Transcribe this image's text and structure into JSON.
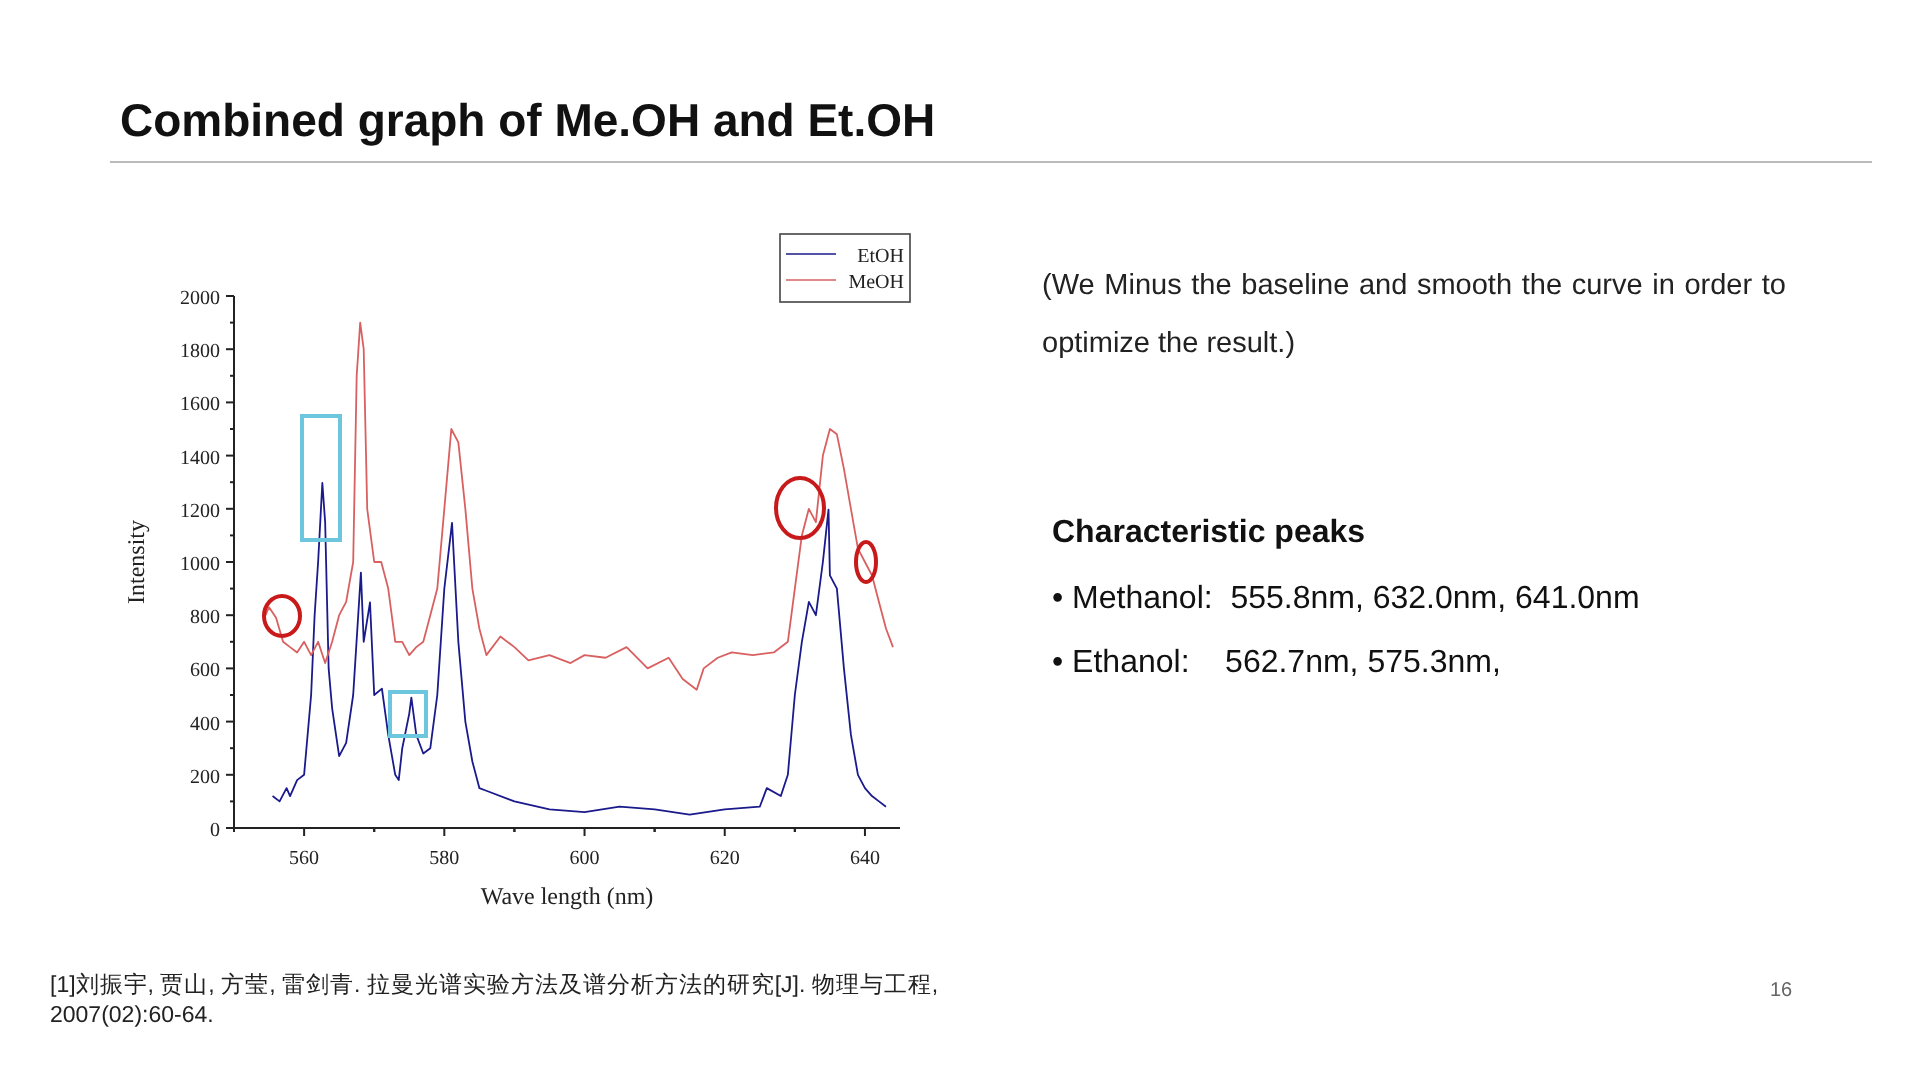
{
  "chart_data": {
    "type": "line",
    "title": "Combined graph of Me.OH and Et.OH",
    "xlabel": "Wave length (nm)",
    "ylabel": "Intensity",
    "xlim": [
      550,
      645
    ],
    "xticks": [
      560,
      580,
      600,
      620,
      640
    ],
    "ylim": [
      0,
      2000
    ],
    "yticks": [
      0,
      200,
      400,
      600,
      800,
      1000,
      1200,
      1400,
      1600,
      1800,
      2000
    ],
    "grid": false,
    "legend": "top right",
    "marker": "none",
    "line_style": "solid",
    "series": [
      {
        "name": "EtOH",
        "color": "#1a1a8c",
        "x": [
          555.5,
          556.5,
          557.5,
          558,
          559,
          560,
          561,
          561.5,
          562,
          562.6,
          563,
          563.5,
          564,
          565,
          566,
          567,
          568.1,
          568.5,
          569.4,
          570,
          571.1,
          572,
          573,
          573.5,
          574,
          575,
          575.3,
          576,
          577,
          578,
          579,
          580,
          581.1,
          582,
          583,
          584,
          585,
          586,
          590,
          595,
          600,
          605,
          610,
          615,
          620,
          625,
          626,
          628,
          629,
          630,
          631,
          632,
          633,
          634,
          634.8,
          635,
          636,
          637,
          638,
          639,
          640,
          641,
          642,
          643
        ],
        "values": [
          120,
          100,
          150,
          120,
          180,
          200,
          500,
          800,
          1000,
          1297,
          1150,
          600,
          450,
          270,
          320,
          500,
          960,
          700,
          848,
          500,
          524,
          350,
          200,
          180,
          300,
          430,
          490,
          350,
          280,
          300,
          500,
          900,
          1147,
          700,
          400,
          250,
          150,
          140,
          100,
          70,
          60,
          80,
          70,
          50,
          70,
          80,
          150,
          120,
          200,
          500,
          700,
          850,
          800,
          1000,
          1197,
          950,
          900,
          600,
          350,
          200,
          150,
          120,
          100,
          80
        ]
      },
      {
        "name": "MeOH",
        "color": "#d96060",
        "x": [
          554.5,
          555,
          556,
          557,
          558,
          559,
          560,
          561,
          562,
          563,
          564,
          565,
          566,
          567,
          567.5,
          568,
          568.5,
          569,
          570,
          571,
          572,
          573,
          574,
          575,
          576,
          577,
          578,
          579,
          580,
          581,
          582,
          583,
          584,
          585,
          586,
          588,
          590,
          592,
          595,
          598,
          600,
          603,
          606,
          609,
          612,
          614,
          616,
          617,
          619,
          621,
          624,
          627,
          629,
          630,
          631,
          632,
          633,
          634,
          635,
          636,
          637,
          638,
          639,
          640,
          641,
          642,
          643,
          644
        ],
        "values": [
          800,
          830,
          790,
          700,
          680,
          660,
          700,
          650,
          700,
          620,
          700,
          800,
          850,
          1000,
          1700,
          1900,
          1800,
          1200,
          1000,
          1000,
          900,
          700,
          700,
          650,
          680,
          700,
          800,
          900,
          1200,
          1500,
          1450,
          1200,
          900,
          750,
          650,
          720,
          680,
          630,
          650,
          620,
          650,
          640,
          680,
          600,
          640,
          560,
          520,
          600,
          640,
          660,
          650,
          660,
          700,
          900,
          1100,
          1200,
          1150,
          1400,
          1500,
          1480,
          1350,
          1200,
          1050,
          1000,
          950,
          850,
          750,
          680
        ]
      }
    ],
    "annotations": [
      "(We Minus the baseline and smooth the curve in order to optimize the result.)",
      "Characteristic peaks",
      "• Methanol:  555.8nm, 632.0nm, 641.0nm",
      "• Ethanol:    562.7nm, 575.3nm,",
      "[1]刘振宇, 贾山, 方莹, 雷剑青. 拉曼光谱实验方法及谱分析方法的研究[J]. 物理与工程, 2007(02):60-64.",
      "16"
    ]
  }
}
